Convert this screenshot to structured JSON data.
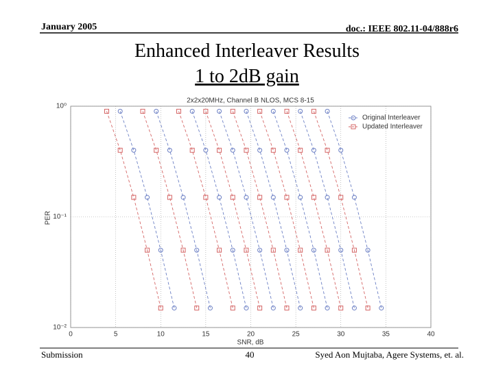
{
  "header": {
    "date": "January 2005",
    "doc": "doc.: IEEE 802.11-04/888r6"
  },
  "slide": {
    "title": "Enhanced Interleaver Results",
    "subtitle": "1 to 2dB gain"
  },
  "footer": {
    "left": "Submission",
    "page": "40",
    "right": "Syed Aon Mujtaba, Agere Systems, et. al."
  },
  "chart_data": {
    "type": "line",
    "title": "2x2x20MHz, Channel B NLOS, MCS 8-15",
    "xlabel": "SNR, dB",
    "ylabel": "PER",
    "log_y": true,
    "grid": true,
    "legend": "upper right",
    "xlim": [
      0,
      40
    ],
    "xticks": [
      0,
      5,
      10,
      15,
      20,
      25,
      30,
      35,
      40
    ],
    "ylim": [
      0.01,
      1
    ],
    "yticks": [
      {
        "value": 0.01,
        "label": "10⁻²"
      },
      {
        "value": 0.1,
        "label": "10⁻¹"
      },
      {
        "value": 1,
        "label": "10⁰"
      }
    ],
    "series": [
      {
        "name": "Original Interleaver",
        "color": "#6b7fc4",
        "marker": "circle",
        "x": [
          5.5,
          7,
          8.5,
          10,
          11.5
        ],
        "values": [
          0.9,
          0.4,
          0.15,
          0.05,
          0.015
        ]
      },
      {
        "name": "Original Interleaver",
        "color": "#6b7fc4",
        "marker": "circle",
        "x": [
          9.5,
          11,
          12.5,
          14,
          15.5
        ],
        "values": [
          0.9,
          0.4,
          0.15,
          0.05,
          0.015
        ]
      },
      {
        "name": "Original Interleaver",
        "color": "#6b7fc4",
        "marker": "circle",
        "x": [
          13.5,
          15,
          16.5,
          18,
          19.5
        ],
        "values": [
          0.9,
          0.4,
          0.15,
          0.05,
          0.015
        ]
      },
      {
        "name": "Original Interleaver",
        "color": "#6b7fc4",
        "marker": "circle",
        "x": [
          16.5,
          18,
          19.5,
          21,
          22.5
        ],
        "values": [
          0.9,
          0.4,
          0.15,
          0.05,
          0.015
        ]
      },
      {
        "name": "Original Interleaver",
        "color": "#6b7fc4",
        "marker": "circle",
        "x": [
          19.5,
          21,
          22.5,
          24,
          25.5
        ],
        "values": [
          0.9,
          0.4,
          0.15,
          0.05,
          0.015
        ]
      },
      {
        "name": "Original Interleaver",
        "color": "#6b7fc4",
        "marker": "circle",
        "x": [
          22.5,
          24,
          25.5,
          27,
          28.5
        ],
        "values": [
          0.9,
          0.4,
          0.15,
          0.05,
          0.015
        ]
      },
      {
        "name": "Original Interleaver",
        "color": "#6b7fc4",
        "marker": "circle",
        "x": [
          25.5,
          27,
          28.5,
          30,
          31.5
        ],
        "values": [
          0.9,
          0.4,
          0.15,
          0.05,
          0.015
        ]
      },
      {
        "name": "Original Interleaver",
        "color": "#6b7fc4",
        "marker": "circle",
        "x": [
          28.5,
          30,
          31.5,
          33,
          34.5
        ],
        "values": [
          0.9,
          0.4,
          0.15,
          0.05,
          0.015
        ]
      },
      {
        "name": "Updated Interleaver",
        "color": "#d46464",
        "marker": "square",
        "x": [
          4,
          5.5,
          7,
          8.5,
          10
        ],
        "values": [
          0.9,
          0.4,
          0.15,
          0.05,
          0.015
        ]
      },
      {
        "name": "Updated Interleaver",
        "color": "#d46464",
        "marker": "square",
        "x": [
          8,
          9.5,
          11,
          12.5,
          14
        ],
        "values": [
          0.9,
          0.4,
          0.15,
          0.05,
          0.015
        ]
      },
      {
        "name": "Updated Interleaver",
        "color": "#d46464",
        "marker": "square",
        "x": [
          12,
          13.5,
          15,
          16.5,
          18
        ],
        "values": [
          0.9,
          0.4,
          0.15,
          0.05,
          0.015
        ]
      },
      {
        "name": "Updated Interleaver",
        "color": "#d46464",
        "marker": "square",
        "x": [
          15,
          16.5,
          18,
          19.5,
          21
        ],
        "values": [
          0.9,
          0.4,
          0.15,
          0.05,
          0.015
        ]
      },
      {
        "name": "Updated Interleaver",
        "color": "#d46464",
        "marker": "square",
        "x": [
          18,
          19.5,
          21,
          22.5,
          24
        ],
        "values": [
          0.9,
          0.4,
          0.15,
          0.05,
          0.015
        ]
      },
      {
        "name": "Updated Interleaver",
        "color": "#d46464",
        "marker": "square",
        "x": [
          21,
          22.5,
          24,
          25.5,
          27
        ],
        "values": [
          0.9,
          0.4,
          0.15,
          0.05,
          0.015
        ]
      },
      {
        "name": "Updated Interleaver",
        "color": "#d46464",
        "marker": "square",
        "x": [
          24,
          25.5,
          27,
          28.5,
          30
        ],
        "values": [
          0.9,
          0.4,
          0.15,
          0.05,
          0.015
        ]
      },
      {
        "name": "Updated Interleaver",
        "color": "#d46464",
        "marker": "square",
        "x": [
          27,
          28.5,
          30,
          31.5,
          33
        ],
        "values": [
          0.9,
          0.4,
          0.15,
          0.05,
          0.015
        ]
      }
    ]
  }
}
